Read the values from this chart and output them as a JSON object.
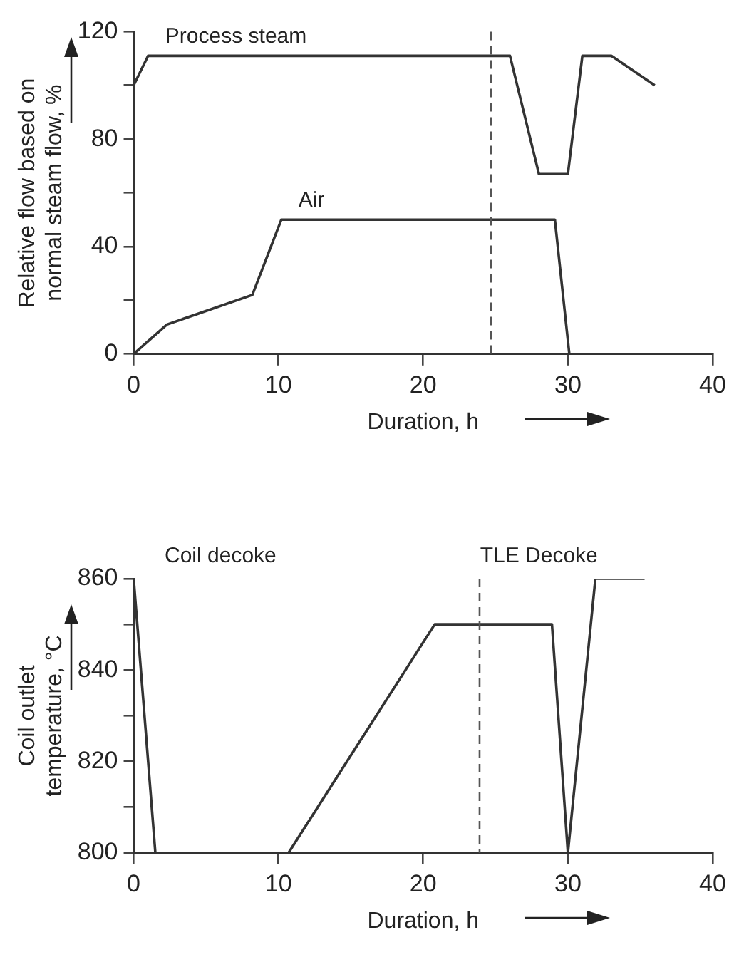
{
  "chart_data": [
    {
      "type": "line",
      "xlabel": "Duration, h",
      "ylabel": "Relative flow based on normal steam flow, %",
      "series": [
        {
          "name": "Process steam",
          "color": "#333333",
          "x": [
            0,
            1,
            26,
            28,
            30,
            31,
            33,
            36
          ],
          "values": [
            100,
            111,
            111,
            67,
            67,
            111,
            111,
            100
          ]
        },
        {
          "name": "Air",
          "color": "#333333",
          "x": [
            0,
            2.3,
            8.2,
            10.2,
            29.1,
            30.1
          ],
          "values": [
            0,
            11,
            22,
            50,
            50,
            0
          ]
        }
      ],
      "xlim": [
        0,
        40
      ],
      "xticks": [
        0,
        10,
        20,
        30,
        40
      ],
      "ylim": [
        0,
        120
      ],
      "yticks": [
        0,
        {
          "value": 20,
          "label": null
        },
        40,
        {
          "value": 60,
          "label": null
        },
        80,
        {
          "value": 100,
          "label": null
        },
        120
      ],
      "ref_lines": [
        {
          "axis": "x",
          "value": 24.7,
          "color": "#555555",
          "line_style": "dashed"
        }
      ],
      "grid": false,
      "marker": "none",
      "line_style": "solid"
    },
    {
      "type": "line",
      "xlabel": "Duration, h",
      "ylabel": "Coil outlet temperature, °C",
      "series": [
        {
          "color": "#333333",
          "x": [
            0,
            1.5,
            10.7,
            20.8,
            28.9,
            30,
            31.9,
            35.3
          ],
          "values": [
            860,
            800,
            800,
            850,
            850,
            800,
            860,
            860
          ]
        }
      ],
      "xlim": [
        0,
        40
      ],
      "xticks": [
        0,
        10,
        20,
        30,
        40
      ],
      "ylim": [
        800,
        860
      ],
      "yticks": [
        800,
        {
          "value": 810,
          "label": null
        },
        820,
        {
          "value": 830,
          "label": null
        },
        840,
        {
          "value": 850,
          "label": null
        },
        860
      ],
      "ref_lines": [
        {
          "axis": "x",
          "value": 23.9,
          "color": "#555555",
          "line_style": "dashed"
        }
      ],
      "annotations": [
        "Coil decoke",
        "TLE Decoke"
      ],
      "grid": false,
      "marker": "none",
      "line_style": "solid"
    }
  ]
}
